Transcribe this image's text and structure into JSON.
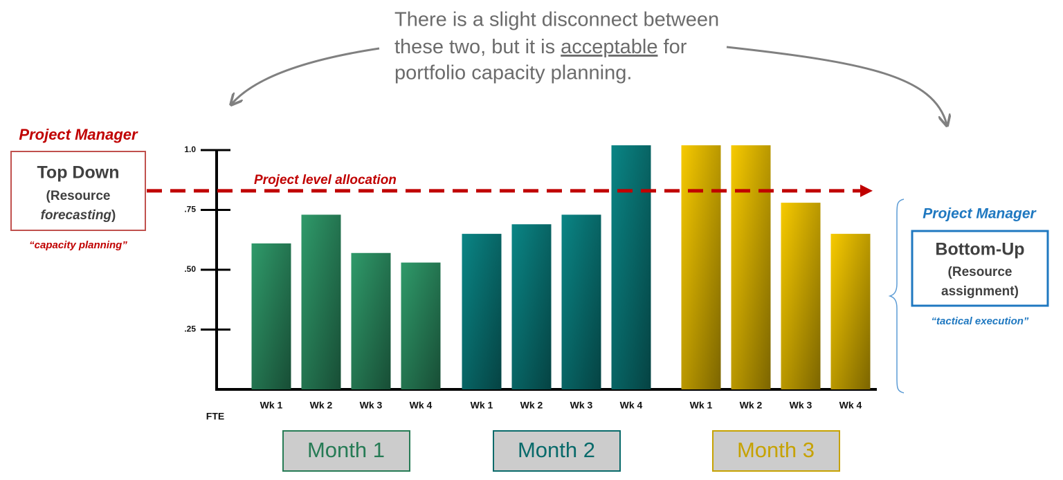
{
  "annotation": {
    "parts": [
      "There is a slight disconnect between",
      "these two, but it is ",
      "acceptable",
      " for",
      "portfolio capacity planning."
    ]
  },
  "left_panel": {
    "role": "Project Manager",
    "title": "Top Down",
    "lines": [
      "(Resource",
      "forecasting",
      ")"
    ],
    "quote": "“capacity planning”"
  },
  "right_panel": {
    "role": "Project Manager",
    "title": "Bottom-Up",
    "lines": [
      "(Resource",
      "assignment)"
    ],
    "quote": "“tactical execution”"
  },
  "chart_data": {
    "type": "bar",
    "y_label": "FTE",
    "categories": [
      "Wk 1",
      "Wk 2",
      "Wk 3",
      "Wk 4"
    ],
    "series": [
      {
        "name": "Month 1",
        "color": "#2f9a6a",
        "values": [
          0.61,
          0.73,
          0.57,
          0.53
        ]
      },
      {
        "name": "Month 2",
        "color": "#0a8585",
        "values": [
          0.65,
          0.69,
          0.73,
          1.02
        ]
      },
      {
        "name": "Month 3",
        "color": "#f7ca00",
        "values": [
          1.02,
          1.02,
          0.78,
          0.65
        ]
      }
    ],
    "ylim": [
      0,
      1
    ],
    "yticks": [
      {
        "value": 0.25,
        "label": ".25"
      },
      {
        "value": 0.5,
        "label": ".50"
      },
      {
        "value": 0.75,
        "label": ".75"
      },
      {
        "value": 1,
        "label": "1.0"
      }
    ],
    "reference_line": {
      "value": 0.83,
      "label": "Project level allocation"
    }
  }
}
